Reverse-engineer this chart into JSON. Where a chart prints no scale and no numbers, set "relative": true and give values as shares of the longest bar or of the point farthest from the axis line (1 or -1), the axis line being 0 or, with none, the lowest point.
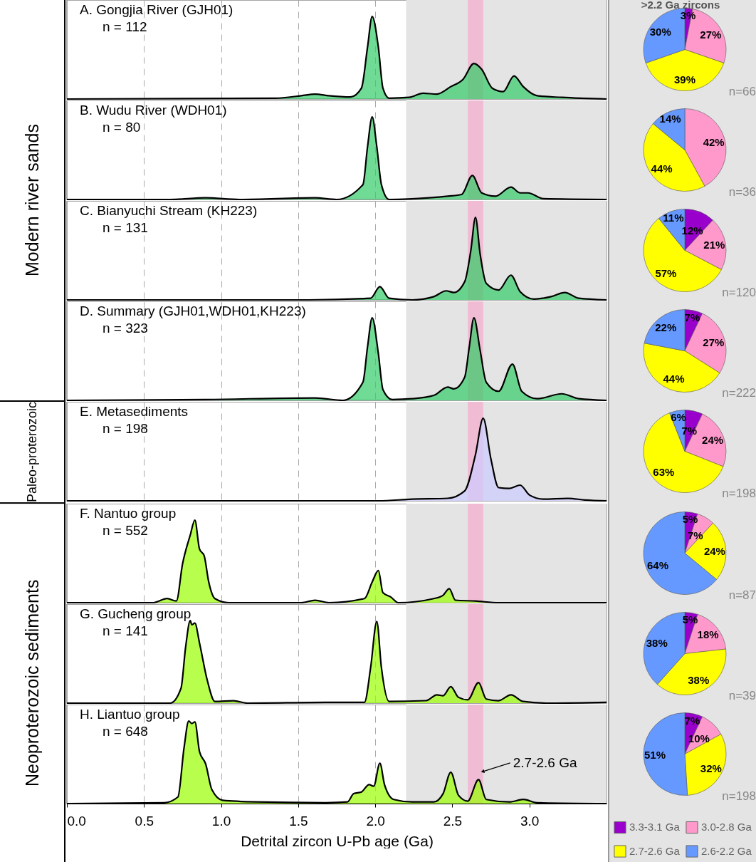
{
  "chart_data": [
    {
      "type": "area",
      "title": "A. Gongjia River (GJH01)",
      "subtitle": "n = 112",
      "annotations": [
        "Modern river sands"
      ],
      "relative": true,
      "color": "#33cc66",
      "xlim": [
        0,
        3.5
      ],
      "xticks": [
        0,
        0.5,
        1,
        1.5,
        2,
        2.5,
        3
      ],
      "tick_labels": false,
      "grid": "x",
      "bands": [
        {
          "axis": "x",
          "from": 2.2,
          "to": 3.5,
          "color": "#e4e4e4"
        },
        {
          "axis": "x",
          "from": 2.6,
          "to": 2.7,
          "color": "#f0bcd4"
        }
      ],
      "x": [
        0,
        1.35,
        1.52,
        1.61,
        1.7,
        1.84,
        1.91,
        1.95,
        1.98,
        2.02,
        2.05,
        2.09,
        2.22,
        2.31,
        2.4,
        2.49,
        2.57,
        2.64,
        2.69,
        2.76,
        2.83,
        2.9,
        2.96,
        3.05,
        3.21,
        3.5
      ],
      "values": [
        0,
        0.01,
        0.04,
        0.06,
        0.04,
        0.025,
        0.13,
        0.63,
        1,
        0.63,
        0.13,
        0.01,
        0.02,
        0.07,
        0.06,
        0.15,
        0.24,
        0.43,
        0.36,
        0.13,
        0.09,
        0.28,
        0.15,
        0.04,
        0.02,
        0
      ]
    },
    {
      "type": "pie",
      "title": ">2.2 Ga zircons",
      "categories": [
        null,
        null,
        null,
        null
      ],
      "colors": [
        "#9900cc",
        "#ff99cc",
        "#ffff00",
        "#6699ff"
      ],
      "values": [
        3,
        27,
        39,
        30
      ],
      "value_labels": [
        "3%",
        "27%",
        "39%",
        "30%"
      ],
      "annotations": [
        "n=66"
      ]
    },
    {
      "type": "area",
      "title": "B. Wudu River (WDH01)",
      "subtitle": "n = 80",
      "relative": true,
      "color": "#33cc66",
      "xlim": [
        0,
        3.5
      ],
      "xticks": [
        0,
        0.5,
        1,
        1.5,
        2,
        2.5,
        3
      ],
      "tick_labels": false,
      "grid": "x",
      "bands": [
        {
          "axis": "x",
          "from": 2.2,
          "to": 3.5,
          "color": "#e4e4e4"
        },
        {
          "axis": "x",
          "from": 2.6,
          "to": 2.7,
          "color": "#f0bcd4"
        }
      ],
      "x": [
        0,
        0.67,
        0.9,
        1.12,
        1.61,
        1.75,
        1.92,
        1.95,
        1.98,
        2.01,
        2.04,
        2.09,
        2.35,
        2.47,
        2.56,
        2.63,
        2.69,
        2.78,
        2.88,
        2.94,
        2.99,
        3.09,
        3.5
      ],
      "values": [
        0,
        0,
        0.02,
        0,
        0.02,
        0,
        0.18,
        0.64,
        1,
        0.64,
        0.18,
        0,
        0.02,
        0.04,
        0.06,
        0.29,
        0.08,
        0.04,
        0.15,
        0.08,
        0.08,
        0.01,
        0
      ]
    },
    {
      "type": "pie",
      "categories": [
        null,
        null,
        null,
        null
      ],
      "colors": [
        "#9900cc",
        "#ff99cc",
        "#ffff00",
        "#6699ff"
      ],
      "values": [
        null,
        42,
        44,
        14
      ],
      "value_labels": [
        null,
        "42%",
        "44%",
        "14%"
      ],
      "annotations": [
        "n=36"
      ]
    },
    {
      "type": "area",
      "title": "C. Bianyuchi Stream (KH223)",
      "subtitle": "n = 131",
      "relative": true,
      "color": "#33cc66",
      "xlim": [
        0,
        3.5
      ],
      "xticks": [
        0,
        0.5,
        1,
        1.5,
        2,
        2.5,
        3
      ],
      "tick_labels": false,
      "grid": "x",
      "bands": [
        {
          "axis": "x",
          "from": 2.2,
          "to": 3.5,
          "color": "#e4e4e4"
        },
        {
          "axis": "x",
          "from": 2.6,
          "to": 2.7,
          "color": "#f0bcd4"
        }
      ],
      "x": [
        0,
        1.57,
        1.97,
        2.03,
        2.09,
        2.24,
        2.38,
        2.46,
        2.51,
        2.58,
        2.62,
        2.65,
        2.68,
        2.72,
        2.8,
        2.88,
        2.94,
        3.03,
        3.14,
        3.23,
        3.32,
        3.5
      ],
      "values": [
        0,
        0,
        0.02,
        0.16,
        0.02,
        0,
        0.04,
        0.11,
        0.09,
        0.22,
        0.6,
        1,
        0.56,
        0.2,
        0.12,
        0.3,
        0.1,
        0.01,
        0.04,
        0.09,
        0.02,
        0
      ]
    },
    {
      "type": "pie",
      "categories": [
        null,
        null,
        null,
        null
      ],
      "colors": [
        "#9900cc",
        "#ff99cc",
        "#ffff00",
        "#6699ff"
      ],
      "values": [
        12,
        21,
        57,
        11
      ],
      "value_labels": [
        "12%",
        "21%",
        "57%",
        "11%"
      ],
      "annotations": [
        "n=120"
      ]
    },
    {
      "type": "area",
      "title": "D. Summary (GJH01,WDH01,KH223)",
      "subtitle": "n = 323",
      "relative": true,
      "color": "#33cc66",
      "xlim": [
        0,
        3.5
      ],
      "xticks": [
        0,
        0.5,
        1,
        1.5,
        2,
        2.5,
        3
      ],
      "tick_labels": false,
      "grid": "x",
      "bands": [
        {
          "axis": "x",
          "from": 2.2,
          "to": 3.5,
          "color": "#e4e4e4"
        },
        {
          "axis": "x",
          "from": 2.6,
          "to": 2.7,
          "color": "#f0bcd4"
        }
      ],
      "x": [
        0,
        0.9,
        1.61,
        1.79,
        1.92,
        1.95,
        1.98,
        2.02,
        2.05,
        2.11,
        2.24,
        2.38,
        2.47,
        2.51,
        2.58,
        2.61,
        2.64,
        2.68,
        2.72,
        2.8,
        2.89,
        2.95,
        3.05,
        3.21,
        3.32,
        3.5
      ],
      "values": [
        0,
        0.01,
        0.03,
        0,
        0.22,
        0.65,
        1,
        0.57,
        0.13,
        0.01,
        0.02,
        0.06,
        0.16,
        0.14,
        0.28,
        0.65,
        1,
        0.61,
        0.22,
        0.11,
        0.44,
        0.11,
        0.02,
        0.08,
        0.02,
        0
      ]
    },
    {
      "type": "pie",
      "categories": [
        null,
        null,
        null,
        null
      ],
      "colors": [
        "#9900cc",
        "#ff99cc",
        "#ffff00",
        "#6699ff"
      ],
      "values": [
        7,
        27,
        44,
        22
      ],
      "value_labels": [
        "7%",
        "27%",
        "44%",
        "22%"
      ],
      "annotations": [
        "n=222"
      ]
    },
    {
      "type": "area",
      "title": "E. Metasediments",
      "subtitle": "n = 198",
      "annotations": [
        "Paleo-proterozoic"
      ],
      "relative": true,
      "color": "#ccccff",
      "xlim": [
        0,
        3.5
      ],
      "xticks": [
        0,
        0.5,
        1,
        1.5,
        2,
        2.5,
        3
      ],
      "tick_labels": false,
      "grid": "x",
      "bands": [
        {
          "axis": "x",
          "from": 2.2,
          "to": 3.5,
          "color": "#e4e4e4"
        },
        {
          "axis": "x",
          "from": 2.6,
          "to": 2.7,
          "color": "#f0bcd4"
        }
      ],
      "x": [
        0,
        2.02,
        2.24,
        2.47,
        2.58,
        2.65,
        2.7,
        2.75,
        2.8,
        2.87,
        2.94,
        3.0,
        3.09,
        3.25,
        3.36,
        3.5
      ],
      "values": [
        0,
        0,
        0.02,
        0.03,
        0.12,
        0.56,
        1,
        0.51,
        0.16,
        0.15,
        0.19,
        0.07,
        0.02,
        0.03,
        0.01,
        0
      ]
    },
    {
      "type": "pie",
      "categories": [
        null,
        null,
        null,
        null
      ],
      "colors": [
        "#9900cc",
        "#ff99cc",
        "#ffff00",
        "#6699ff"
      ],
      "values": [
        7,
        24,
        63,
        6
      ],
      "value_labels": [
        "7%",
        "24%",
        "63%",
        "6%"
      ],
      "annotations": [
        "n=198"
      ]
    },
    {
      "type": "area",
      "title": "F. Nantuo group",
      "subtitle": "n = 552",
      "annotations": [
        "Neoproterozoic sediments"
      ],
      "relative": true,
      "color": "#99ff00",
      "xlim": [
        0,
        3.5
      ],
      "xticks": [
        0,
        0.5,
        1,
        1.5,
        2,
        2.5,
        3
      ],
      "tick_labels": false,
      "grid": "x",
      "bands": [
        {
          "axis": "x",
          "from": 2.2,
          "to": 3.5,
          "color": "#e4e4e4"
        },
        {
          "axis": "x",
          "from": 2.6,
          "to": 2.7,
          "color": "#f0bcd4"
        }
      ],
      "x": [
        0,
        0.56,
        0.65,
        0.71,
        0.75,
        0.8,
        0.83,
        0.86,
        0.89,
        0.92,
        0.96,
        1.05,
        1.52,
        1.61,
        1.7,
        1.93,
        1.98,
        2.02,
        2.05,
        2.1,
        2.15,
        2.38,
        2.44,
        2.48,
        2.52,
        2.65,
        2.8,
        3.5
      ],
      "values": [
        0,
        0,
        0.05,
        0.02,
        0.47,
        0.82,
        1,
        0.65,
        0.57,
        0.25,
        0.05,
        0,
        0,
        0.03,
        0,
        0.05,
        0.25,
        0.39,
        0.12,
        0.07,
        0,
        0.05,
        0.09,
        0.17,
        0.03,
        0.02,
        0,
        0
      ]
    },
    {
      "type": "pie",
      "categories": [
        null,
        null,
        null,
        null
      ],
      "colors": [
        "#9900cc",
        "#ff99cc",
        "#ffff00",
        "#6699ff"
      ],
      "values": [
        5,
        7,
        24,
        64
      ],
      "value_labels": [
        "5%",
        "7%",
        "24%",
        "64%"
      ],
      "annotations": [
        "n=87"
      ]
    },
    {
      "type": "area",
      "title": "G. Gucheng group",
      "subtitle": "n = 141",
      "relative": true,
      "color": "#99ff00",
      "xlim": [
        0,
        3.5
      ],
      "xticks": [
        0,
        0.5,
        1,
        1.5,
        2,
        2.5,
        3
      ],
      "tick_labels": false,
      "grid": "x",
      "bands": [
        {
          "axis": "x",
          "from": 2.2,
          "to": 3.5,
          "color": "#e4e4e4"
        },
        {
          "axis": "x",
          "from": 2.6,
          "to": 2.7,
          "color": "#f0bcd4"
        }
      ],
      "x": [
        0,
        0.67,
        0.74,
        0.77,
        0.8,
        0.81,
        0.83,
        0.86,
        0.91,
        0.96,
        1.08,
        1.17,
        1.68,
        1.93,
        1.97,
        2.01,
        2.04,
        2.09,
        2.33,
        2.4,
        2.44,
        2.49,
        2.54,
        2.6,
        2.67,
        2.72,
        2.8,
        2.88,
        2.96,
        3.14,
        3.5
      ],
      "values": [
        0,
        0,
        0.18,
        0.68,
        1,
        0.95,
        0.97,
        0.73,
        0.28,
        0.02,
        0.03,
        0,
        0.01,
        0.01,
        0.43,
        0.99,
        0.43,
        0.02,
        0.03,
        0.1,
        0.09,
        0.2,
        0.07,
        0.04,
        0.25,
        0.05,
        0.03,
        0.1,
        0.02,
        0,
        0.01
      ]
    },
    {
      "type": "pie",
      "categories": [
        null,
        null,
        null,
        null
      ],
      "colors": [
        "#9900cc",
        "#ff99cc",
        "#ffff00",
        "#6699ff"
      ],
      "values": [
        5,
        18,
        38,
        38
      ],
      "value_labels": [
        "5%",
        "18%",
        "38%",
        "38%"
      ],
      "annotations": [
        "n=39"
      ]
    },
    {
      "type": "area",
      "title": "H. Liantuo group",
      "subtitle": "n = 648",
      "xlabel": "Detrital zircon U-Pb age (Ga)",
      "annotations": [
        {
          "text": "2.7-2.6 Ga",
          "x": 2.7,
          "y": 0.39
        }
      ],
      "relative": true,
      "color": "#99ff00",
      "xlim": [
        0,
        3.5
      ],
      "xticks": [
        {
          "value": 0,
          "label": "0.0"
        },
        {
          "value": 0.5,
          "label": "0.5"
        },
        {
          "value": 1,
          "label": "1.0"
        },
        {
          "value": 1.5,
          "label": "1.5"
        },
        {
          "value": 2,
          "label": "2.0"
        },
        {
          "value": 2.5,
          "label": "2.5"
        },
        {
          "value": 3,
          "label": "3.0"
        }
      ],
      "tick_labels": "x",
      "grid": "x",
      "bands": [
        {
          "axis": "x",
          "from": 2.2,
          "to": 3.5,
          "color": "#e4e4e4"
        },
        {
          "axis": "x",
          "from": 2.6,
          "to": 2.7,
          "color": "#f0bcd4"
        }
      ],
      "x": [
        0,
        0.63,
        0.72,
        0.76,
        0.79,
        0.81,
        0.83,
        0.86,
        0.9,
        0.94,
        1.01,
        1.23,
        1.68,
        1.82,
        1.86,
        1.91,
        1.96,
        1.99,
        2.03,
        2.06,
        2.12,
        2.24,
        2.38,
        2.44,
        2.49,
        2.54,
        2.6,
        2.67,
        2.72,
        2.87,
        2.96,
        3.05,
        3.5
      ],
      "values": [
        0,
        0.01,
        0.08,
        0.68,
        1,
        0.97,
        0.99,
        0.63,
        0.48,
        0.17,
        0.04,
        0.02,
        0.01,
        0.02,
        0.12,
        0.14,
        0.23,
        0.21,
        0.49,
        0.23,
        0.05,
        0.02,
        0.02,
        0.12,
        0.38,
        0.1,
        0.03,
        0.29,
        0.05,
        0.02,
        0.05,
        0.01,
        0
      ]
    },
    {
      "type": "pie",
      "categories": [
        "3.3-3.1 Ga",
        "3.0-2.8 Ga",
        "2.7-2.6 Ga",
        "2.6-2.2 Ga"
      ],
      "colors": [
        "#9900cc",
        "#ff99cc",
        "#ffff00",
        "#6699ff"
      ],
      "values": [
        7,
        10,
        32,
        51
      ],
      "value_labels": [
        "7%",
        "10%",
        "32%",
        "51%"
      ],
      "annotations": [
        "n=198"
      ],
      "legend": "bottom"
    }
  ]
}
